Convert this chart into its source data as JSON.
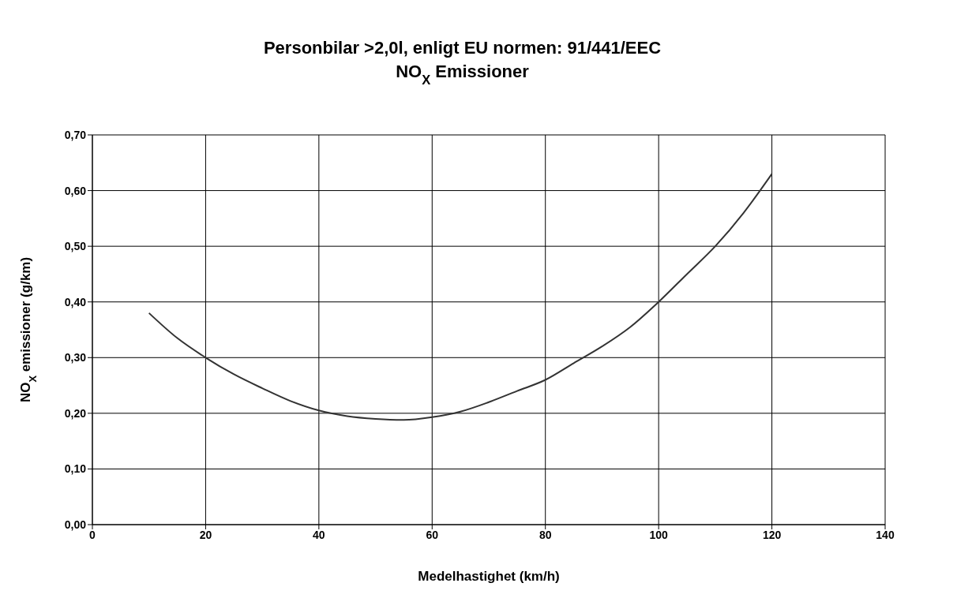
{
  "chart_data": {
    "type": "line",
    "title": "Personbilar >2,0l, enligt EU normen: 91/441/EEC",
    "subtitle": "NO$_{X}$ Emissioner",
    "xlabel": "Medelhastighet (km/h)",
    "ylabel": "NO$_{X}$ emissioner (g/km)",
    "x": [
      10,
      15,
      20,
      25,
      30,
      35,
      40,
      45,
      50,
      55,
      60,
      65,
      70,
      75,
      80,
      85,
      90,
      95,
      100,
      105,
      110,
      115,
      120
    ],
    "series": [
      {
        "color": "#333333",
        "values": [
          0.38,
          0.335,
          0.3,
          0.27,
          0.245,
          0.222,
          0.205,
          0.195,
          0.19,
          0.188,
          0.193,
          0.203,
          0.22,
          0.24,
          0.26,
          0.29,
          0.32,
          0.355,
          0.4,
          0.45,
          0.5,
          0.56,
          0.63
        ]
      }
    ],
    "xlim": [
      0,
      140
    ],
    "xticks": [
      0,
      20,
      40,
      60,
      80,
      100,
      120,
      140
    ],
    "ylim": [
      0,
      0.7
    ],
    "yticks": [
      {
        "value": 0,
        "label": "0,00"
      },
      {
        "value": 0.1,
        "label": "0,10"
      },
      {
        "value": 0.2,
        "label": "0,20"
      },
      {
        "value": 0.3,
        "label": "0,30"
      },
      {
        "value": 0.4,
        "label": "0,40"
      },
      {
        "value": 0.5,
        "label": "0,50"
      },
      {
        "value": 0.6,
        "label": "0,60"
      },
      {
        "value": 0.7,
        "label": "0,70"
      }
    ],
    "grid": true,
    "legend": false,
    "marker": "none",
    "line_style": "solid"
  }
}
